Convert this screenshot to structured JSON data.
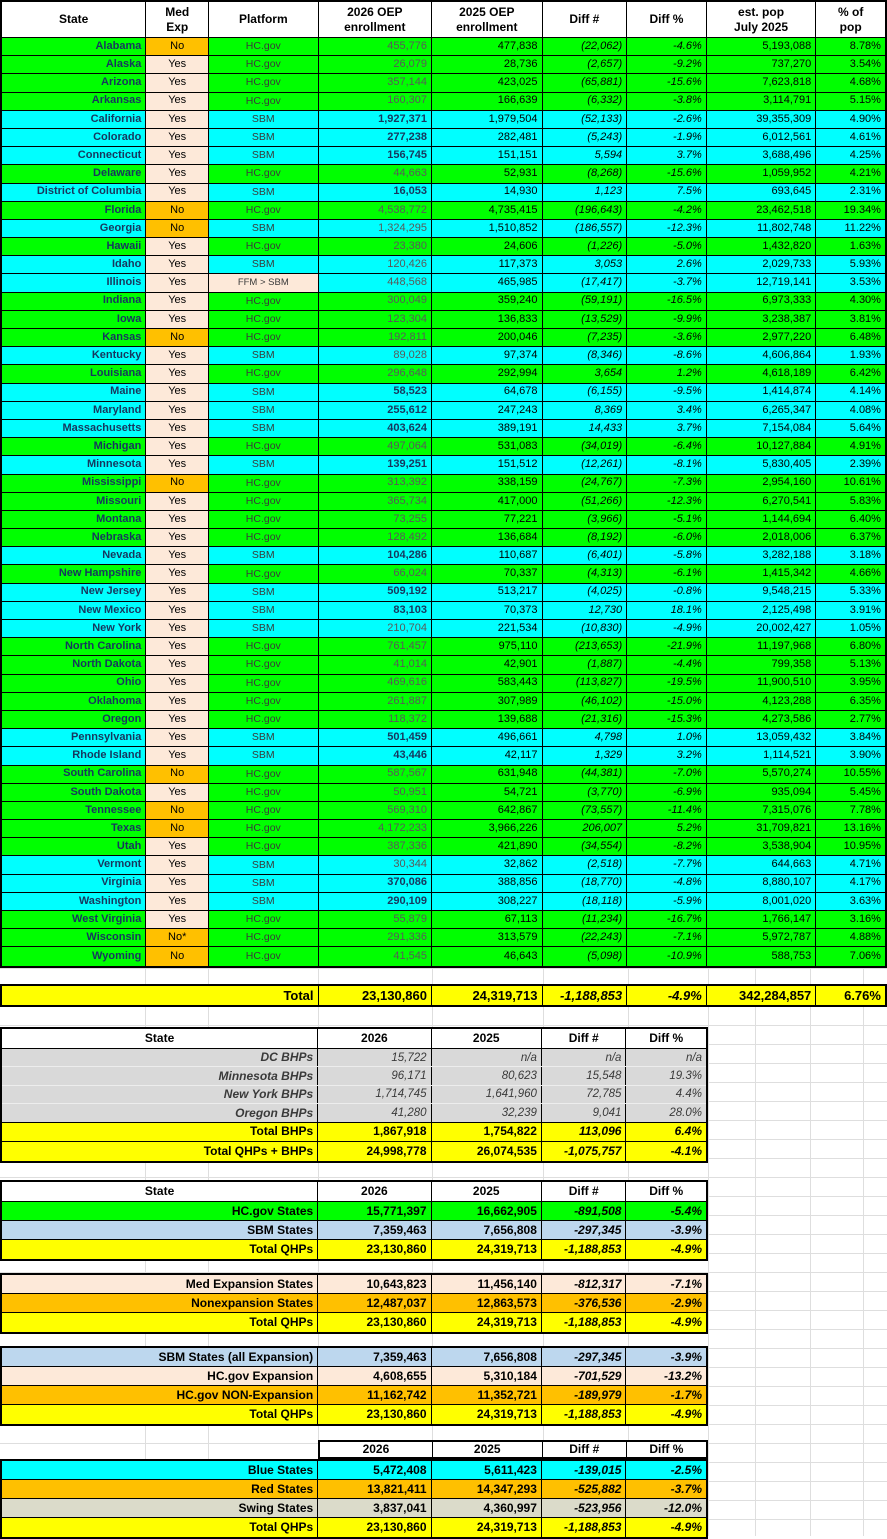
{
  "colors": {
    "hcgov_green": "#00FF00",
    "sbm_cyan": "#00FFFF",
    "total_yellow": "#FFFF00",
    "nonexpansion_orange": "#FFC000",
    "expansion_peach": "#FDE9D9",
    "bhp_gray": "#D9D9D9",
    "sbm_lightblue": "#BDD7EE",
    "swing_olive": "#DBDBCA",
    "state_text_navy": "#17375E"
  },
  "main_table": {
    "headers": {
      "state": "State",
      "med_exp": "Med\nExp",
      "platform": "Platform",
      "e2026": "2026 OEP\nenrollment",
      "e2025": "2025 OEP\nenrollment",
      "diff_n": "Diff #",
      "diff_pct": "Diff %",
      "pop": "est. pop\nJuly 2025",
      "pct_pop": "% of\npop"
    },
    "rows": [
      {
        "state": "Alabama",
        "med_exp": "No",
        "platform": "HC.gov",
        "e2026": "455,776",
        "e2025": "477,838",
        "diff_n": "(22,062)",
        "diff_pct": "-4.6%",
        "pop": "5,193,088",
        "pct_pop": "8.78%"
      },
      {
        "state": "Alaska",
        "med_exp": "Yes",
        "platform": "HC.gov",
        "e2026": "26,079",
        "e2025": "28,736",
        "diff_n": "(2,657)",
        "diff_pct": "-9.2%",
        "pop": "737,270",
        "pct_pop": "3.54%"
      },
      {
        "state": "Arizona",
        "med_exp": "Yes",
        "platform": "HC.gov",
        "e2026": "357,144",
        "e2025": "423,025",
        "diff_n": "(65,881)",
        "diff_pct": "-15.6%",
        "pop": "7,623,818",
        "pct_pop": "4.68%"
      },
      {
        "state": "Arkansas",
        "med_exp": "Yes",
        "platform": "HC.gov",
        "e2026": "160,307",
        "e2025": "166,639",
        "diff_n": "(6,332)",
        "diff_pct": "-3.8%",
        "pop": "3,114,791",
        "pct_pop": "5.15%"
      },
      {
        "state": "California",
        "med_exp": "Yes",
        "platform": "SBM",
        "e2026": "1,927,371",
        "e2025": "1,979,504",
        "diff_n": "(52,133)",
        "diff_pct": "-2.6%",
        "pop": "39,355,309",
        "pct_pop": "4.90%",
        "bold_2026": true
      },
      {
        "state": "Colorado",
        "med_exp": "Yes",
        "platform": "SBM",
        "e2026": "277,238",
        "e2025": "282,481",
        "diff_n": "(5,243)",
        "diff_pct": "-1.9%",
        "pop": "6,012,561",
        "pct_pop": "4.61%",
        "bold_2026": true
      },
      {
        "state": "Connecticut",
        "med_exp": "Yes",
        "platform": "SBM",
        "e2026": "156,745",
        "e2025": "151,151",
        "diff_n": "5,594",
        "diff_pct": "3.7%",
        "pop": "3,688,496",
        "pct_pop": "4.25%",
        "bold_2026": true
      },
      {
        "state": "Delaware",
        "med_exp": "Yes",
        "platform": "HC.gov",
        "e2026": "44,663",
        "e2025": "52,931",
        "diff_n": "(8,268)",
        "diff_pct": "-15.6%",
        "pop": "1,059,952",
        "pct_pop": "4.21%"
      },
      {
        "state": "District of Columbia",
        "med_exp": "Yes",
        "platform": "SBM",
        "e2026": "16,053",
        "e2025": "14,930",
        "diff_n": "1,123",
        "diff_pct": "7.5%",
        "pop": "693,645",
        "pct_pop": "2.31%",
        "bold_2026": true
      },
      {
        "state": "Florida",
        "med_exp": "No",
        "platform": "HC.gov",
        "e2026": "4,538,772",
        "e2025": "4,735,415",
        "diff_n": "(196,643)",
        "diff_pct": "-4.2%",
        "pop": "23,462,518",
        "pct_pop": "19.34%"
      },
      {
        "state": "Georgia",
        "med_exp": "No",
        "platform": "SBM",
        "e2026": "1,324,295",
        "e2025": "1,510,852",
        "diff_n": "(186,557)",
        "diff_pct": "-12.3%",
        "pop": "11,802,748",
        "pct_pop": "11.22%"
      },
      {
        "state": "Hawaii",
        "med_exp": "Yes",
        "platform": "HC.gov",
        "e2026": "23,380",
        "e2025": "24,606",
        "diff_n": "(1,226)",
        "diff_pct": "-5.0%",
        "pop": "1,432,820",
        "pct_pop": "1.63%"
      },
      {
        "state": "Idaho",
        "med_exp": "Yes",
        "platform": "SBM",
        "e2026": "120,426",
        "e2025": "117,373",
        "diff_n": "3,053",
        "diff_pct": "2.6%",
        "pop": "2,029,733",
        "pct_pop": "5.93%"
      },
      {
        "state": "Illinois",
        "med_exp": "Yes",
        "platform": "FFM > SBM",
        "e2026": "448,568",
        "e2025": "465,985",
        "diff_n": "(17,417)",
        "diff_pct": "-3.7%",
        "pop": "12,719,141",
        "pct_pop": "3.53%"
      },
      {
        "state": "Indiana",
        "med_exp": "Yes",
        "platform": "HC.gov",
        "e2026": "300,049",
        "e2025": "359,240",
        "diff_n": "(59,191)",
        "diff_pct": "-16.5%",
        "pop": "6,973,333",
        "pct_pop": "4.30%"
      },
      {
        "state": "Iowa",
        "med_exp": "Yes",
        "platform": "HC.gov",
        "e2026": "123,304",
        "e2025": "136,833",
        "diff_n": "(13,529)",
        "diff_pct": "-9.9%",
        "pop": "3,238,387",
        "pct_pop": "3.81%"
      },
      {
        "state": "Kansas",
        "med_exp": "No",
        "platform": "HC.gov",
        "e2026": "192,811",
        "e2025": "200,046",
        "diff_n": "(7,235)",
        "diff_pct": "-3.6%",
        "pop": "2,977,220",
        "pct_pop": "6.48%"
      },
      {
        "state": "Kentucky",
        "med_exp": "Yes",
        "platform": "SBM",
        "e2026": "89,028",
        "e2025": "97,374",
        "diff_n": "(8,346)",
        "diff_pct": "-8.6%",
        "pop": "4,606,864",
        "pct_pop": "1.93%"
      },
      {
        "state": "Louisiana",
        "med_exp": "Yes",
        "platform": "HC.gov",
        "e2026": "296,648",
        "e2025": "292,994",
        "diff_n": "3,654",
        "diff_pct": "1.2%",
        "pop": "4,618,189",
        "pct_pop": "6.42%"
      },
      {
        "state": "Maine",
        "med_exp": "Yes",
        "platform": "SBM",
        "e2026": "58,523",
        "e2025": "64,678",
        "diff_n": "(6,155)",
        "diff_pct": "-9.5%",
        "pop": "1,414,874",
        "pct_pop": "4.14%",
        "bold_2026": true
      },
      {
        "state": "Maryland",
        "med_exp": "Yes",
        "platform": "SBM",
        "e2026": "255,612",
        "e2025": "247,243",
        "diff_n": "8,369",
        "diff_pct": "3.4%",
        "pop": "6,265,347",
        "pct_pop": "4.08%",
        "bold_2026": true
      },
      {
        "state": "Massachusetts",
        "med_exp": "Yes",
        "platform": "SBM",
        "e2026": "403,624",
        "e2025": "389,191",
        "diff_n": "14,433",
        "diff_pct": "3.7%",
        "pop": "7,154,084",
        "pct_pop": "5.64%",
        "bold_2026": true
      },
      {
        "state": "Michigan",
        "med_exp": "Yes",
        "platform": "HC.gov",
        "e2026": "497,064",
        "e2025": "531,083",
        "diff_n": "(34,019)",
        "diff_pct": "-6.4%",
        "pop": "10,127,884",
        "pct_pop": "4.91%"
      },
      {
        "state": "Minnesota",
        "med_exp": "Yes",
        "platform": "SBM",
        "e2026": "139,251",
        "e2025": "151,512",
        "diff_n": "(12,261)",
        "diff_pct": "-8.1%",
        "pop": "5,830,405",
        "pct_pop": "2.39%",
        "bold_2026": true
      },
      {
        "state": "Mississippi",
        "med_exp": "No",
        "platform": "HC.gov",
        "e2026": "313,392",
        "e2025": "338,159",
        "diff_n": "(24,767)",
        "diff_pct": "-7.3%",
        "pop": "2,954,160",
        "pct_pop": "10.61%"
      },
      {
        "state": "Missouri",
        "med_exp": "Yes",
        "platform": "HC.gov",
        "e2026": "365,734",
        "e2025": "417,000",
        "diff_n": "(51,266)",
        "diff_pct": "-12.3%",
        "pop": "6,270,541",
        "pct_pop": "5.83%"
      },
      {
        "state": "Montana",
        "med_exp": "Yes",
        "platform": "HC.gov",
        "e2026": "73,255",
        "e2025": "77,221",
        "diff_n": "(3,966)",
        "diff_pct": "-5.1%",
        "pop": "1,144,694",
        "pct_pop": "6.40%"
      },
      {
        "state": "Nebraska",
        "med_exp": "Yes",
        "platform": "HC.gov",
        "e2026": "128,492",
        "e2025": "136,684",
        "diff_n": "(8,192)",
        "diff_pct": "-6.0%",
        "pop": "2,018,006",
        "pct_pop": "6.37%"
      },
      {
        "state": "Nevada",
        "med_exp": "Yes",
        "platform": "SBM",
        "e2026": "104,286",
        "e2025": "110,687",
        "diff_n": "(6,401)",
        "diff_pct": "-5.8%",
        "pop": "3,282,188",
        "pct_pop": "3.18%",
        "bold_2026": true
      },
      {
        "state": "New Hampshire",
        "med_exp": "Yes",
        "platform": "HC.gov",
        "e2026": "66,024",
        "e2025": "70,337",
        "diff_n": "(4,313)",
        "diff_pct": "-6.1%",
        "pop": "1,415,342",
        "pct_pop": "4.66%"
      },
      {
        "state": "New Jersey",
        "med_exp": "Yes",
        "platform": "SBM",
        "e2026": "509,192",
        "e2025": "513,217",
        "diff_n": "(4,025)",
        "diff_pct": "-0.8%",
        "pop": "9,548,215",
        "pct_pop": "5.33%",
        "bold_2026": true
      },
      {
        "state": "New Mexico",
        "med_exp": "Yes",
        "platform": "SBM",
        "e2026": "83,103",
        "e2025": "70,373",
        "diff_n": "12,730",
        "diff_pct": "18.1%",
        "pop": "2,125,498",
        "pct_pop": "3.91%",
        "bold_2026": true
      },
      {
        "state": "New York",
        "med_exp": "Yes",
        "platform": "SBM",
        "e2026": "210,704",
        "e2025": "221,534",
        "diff_n": "(10,830)",
        "diff_pct": "-4.9%",
        "pop": "20,002,427",
        "pct_pop": "1.05%"
      },
      {
        "state": "North Carolina",
        "med_exp": "Yes",
        "platform": "HC.gov",
        "e2026": "761,457",
        "e2025": "975,110",
        "diff_n": "(213,653)",
        "diff_pct": "-21.9%",
        "pop": "11,197,968",
        "pct_pop": "6.80%"
      },
      {
        "state": "North Dakota",
        "med_exp": "Yes",
        "platform": "HC.gov",
        "e2026": "41,014",
        "e2025": "42,901",
        "diff_n": "(1,887)",
        "diff_pct": "-4.4%",
        "pop": "799,358",
        "pct_pop": "5.13%"
      },
      {
        "state": "Ohio",
        "med_exp": "Yes",
        "platform": "HC.gov",
        "e2026": "469,616",
        "e2025": "583,443",
        "diff_n": "(113,827)",
        "diff_pct": "-19.5%",
        "pop": "11,900,510",
        "pct_pop": "3.95%"
      },
      {
        "state": "Oklahoma",
        "med_exp": "Yes",
        "platform": "HC.gov",
        "e2026": "261,887",
        "e2025": "307,989",
        "diff_n": "(46,102)",
        "diff_pct": "-15.0%",
        "pop": "4,123,288",
        "pct_pop": "6.35%"
      },
      {
        "state": "Oregon",
        "med_exp": "Yes",
        "platform": "HC.gov",
        "e2026": "118,372",
        "e2025": "139,688",
        "diff_n": "(21,316)",
        "diff_pct": "-15.3%",
        "pop": "4,273,586",
        "pct_pop": "2.77%"
      },
      {
        "state": "Pennsylvania",
        "med_exp": "Yes",
        "platform": "SBM",
        "e2026": "501,459",
        "e2025": "496,661",
        "diff_n": "4,798",
        "diff_pct": "1.0%",
        "pop": "13,059,432",
        "pct_pop": "3.84%",
        "bold_2026": true
      },
      {
        "state": "Rhode Island",
        "med_exp": "Yes",
        "platform": "SBM",
        "e2026": "43,446",
        "e2025": "42,117",
        "diff_n": "1,329",
        "diff_pct": "3.2%",
        "pop": "1,114,521",
        "pct_pop": "3.90%",
        "bold_2026": true
      },
      {
        "state": "South Carolina",
        "med_exp": "No",
        "platform": "HC.gov",
        "e2026": "587,567",
        "e2025": "631,948",
        "diff_n": "(44,381)",
        "diff_pct": "-7.0%",
        "pop": "5,570,274",
        "pct_pop": "10.55%"
      },
      {
        "state": "South Dakota",
        "med_exp": "Yes",
        "platform": "HC.gov",
        "e2026": "50,951",
        "e2025": "54,721",
        "diff_n": "(3,770)",
        "diff_pct": "-6.9%",
        "pop": "935,094",
        "pct_pop": "5.45%"
      },
      {
        "state": "Tennessee",
        "med_exp": "No",
        "platform": "HC.gov",
        "e2026": "569,310",
        "e2025": "642,867",
        "diff_n": "(73,557)",
        "diff_pct": "-11.4%",
        "pop": "7,315,076",
        "pct_pop": "7.78%"
      },
      {
        "state": "Texas",
        "med_exp": "No",
        "platform": "HC.gov",
        "e2026": "4,172,233",
        "e2025": "3,966,226",
        "diff_n": "206,007",
        "diff_pct": "5.2%",
        "pop": "31,709,821",
        "pct_pop": "13.16%"
      },
      {
        "state": "Utah",
        "med_exp": "Yes",
        "platform": "HC.gov",
        "e2026": "387,336",
        "e2025": "421,890",
        "diff_n": "(34,554)",
        "diff_pct": "-8.2%",
        "pop": "3,538,904",
        "pct_pop": "10.95%"
      },
      {
        "state": "Vermont",
        "med_exp": "Yes",
        "platform": "SBM",
        "e2026": "30,344",
        "e2025": "32,862",
        "diff_n": "(2,518)",
        "diff_pct": "-7.7%",
        "pop": "644,663",
        "pct_pop": "4.71%"
      },
      {
        "state": "Virginia",
        "med_exp": "Yes",
        "platform": "SBM",
        "e2026": "370,086",
        "e2025": "388,856",
        "diff_n": "(18,770)",
        "diff_pct": "-4.8%",
        "pop": "8,880,107",
        "pct_pop": "4.17%",
        "bold_2026": true
      },
      {
        "state": "Washington",
        "med_exp": "Yes",
        "platform": "SBM",
        "e2026": "290,109",
        "e2025": "308,227",
        "diff_n": "(18,118)",
        "diff_pct": "-5.9%",
        "pop": "8,001,020",
        "pct_pop": "3.63%",
        "bold_2026": true
      },
      {
        "state": "West Virginia",
        "med_exp": "Yes",
        "platform": "HC.gov",
        "e2026": "55,879",
        "e2025": "67,113",
        "diff_n": "(11,234)",
        "diff_pct": "-16.7%",
        "pop": "1,766,147",
        "pct_pop": "3.16%"
      },
      {
        "state": "Wisconsin",
        "med_exp": "No*",
        "platform": "HC.gov",
        "e2026": "291,336",
        "e2025": "313,579",
        "diff_n": "(22,243)",
        "diff_pct": "-7.1%",
        "pop": "5,972,787",
        "pct_pop": "4.88%"
      },
      {
        "state": "Wyoming",
        "med_exp": "No",
        "platform": "HC.gov",
        "e2026": "41,545",
        "e2025": "46,643",
        "diff_n": "(5,098)",
        "diff_pct": "-10.9%",
        "pop": "588,753",
        "pct_pop": "7.06%"
      }
    ]
  },
  "total_row": {
    "label": "Total",
    "e2026": "23,130,860",
    "e2025": "24,319,713",
    "diff_n": "-1,188,853",
    "diff_pct": "-4.9%",
    "pop": "342,284,857",
    "pct_pop": "6.76%"
  },
  "bhp_table": {
    "headers": [
      "State",
      "2026",
      "2025",
      "Diff #",
      "Diff %"
    ],
    "rows": [
      {
        "label": "DC BHPs",
        "v2026": "15,722",
        "v2025": "n/a",
        "diff": "n/a",
        "pct": "n/a",
        "color": "gray"
      },
      {
        "label": "Minnesota BHPs",
        "v2026": "96,171",
        "v2025": "80,623",
        "diff": "15,548",
        "pct": "19.3%",
        "color": "gray"
      },
      {
        "label": "New York BHPs",
        "v2026": "1,714,745",
        "v2025": "1,641,960",
        "diff": "72,785",
        "pct": "4.4%",
        "color": "gray"
      },
      {
        "label": "Oregon BHPs",
        "v2026": "41,280",
        "v2025": "32,239",
        "diff": "9,041",
        "pct": "28.0%",
        "color": "gray"
      },
      {
        "label": "Total BHPs",
        "v2026": "1,867,918",
        "v2025": "1,754,822",
        "diff": "113,096",
        "pct": "6.4%",
        "color": "yellow"
      },
      {
        "label": "Total QHPs + BHPs",
        "v2026": "24,998,778",
        "v2025": "26,074,535",
        "diff": "-1,075,757",
        "pct": "-4.1%",
        "color": "yellow"
      }
    ]
  },
  "platform_table": {
    "headers": [
      "State",
      "2026",
      "2025",
      "Diff #",
      "Diff %"
    ],
    "rows": [
      {
        "label": "HC.gov States",
        "v2026": "15,771,397",
        "v2025": "16,662,905",
        "diff": "-891,508",
        "pct": "-5.4%",
        "color": "green"
      },
      {
        "label": "SBM States",
        "v2026": "7,359,463",
        "v2025": "7,656,808",
        "diff": "-297,345",
        "pct": "-3.9%",
        "color": "lightblue"
      },
      {
        "label": "Total QHPs",
        "v2026": "23,130,860",
        "v2025": "24,319,713",
        "diff": "-1,188,853",
        "pct": "-4.9%",
        "color": "yellow"
      }
    ]
  },
  "expansion_table": {
    "rows": [
      {
        "label": "Med Expansion States",
        "v2026": "10,643,823",
        "v2025": "11,456,140",
        "diff": "-812,317",
        "pct": "-7.1%",
        "color": "peach"
      },
      {
        "label": "Nonexpansion States",
        "v2026": "12,487,037",
        "v2025": "12,863,573",
        "diff": "-376,536",
        "pct": "-2.9%",
        "color": "orange"
      },
      {
        "label": "Total QHPs",
        "v2026": "23,130,860",
        "v2025": "24,319,713",
        "diff": "-1,188,853",
        "pct": "-4.9%",
        "color": "yellow"
      }
    ]
  },
  "sbm_expansion_table": {
    "rows": [
      {
        "label": "SBM States (all Expansion)",
        "v2026": "7,359,463",
        "v2025": "7,656,808",
        "diff": "-297,345",
        "pct": "-3.9%",
        "color": "lightblue"
      },
      {
        "label": "HC.gov Expansion",
        "v2026": "4,608,655",
        "v2025": "5,310,184",
        "diff": "-701,529",
        "pct": "-13.2%",
        "color": "peach"
      },
      {
        "label": "HC.gov NON-Expansion",
        "v2026": "11,162,742",
        "v2025": "11,352,721",
        "diff": "-189,979",
        "pct": "-1.7%",
        "color": "orange"
      },
      {
        "label": "Total QHPs",
        "v2026": "23,130,860",
        "v2025": "24,319,713",
        "diff": "-1,188,853",
        "pct": "-4.9%",
        "color": "yellow"
      }
    ]
  },
  "political_table": {
    "headers": [
      "2026",
      "2025",
      "Diff #",
      "Diff %"
    ],
    "rows": [
      {
        "label": "Blue States",
        "v2026": "5,472,408",
        "v2025": "5,611,423",
        "diff": "-139,015",
        "pct": "-2.5%",
        "color": "cyan"
      },
      {
        "label": "Red States",
        "v2026": "13,821,411",
        "v2025": "14,347,293",
        "diff": "-525,882",
        "pct": "-3.7%",
        "color": "orange"
      },
      {
        "label": "Swing States",
        "v2026": "3,837,041",
        "v2025": "4,360,997",
        "diff": "-523,956",
        "pct": "-12.0%",
        "color": "swing"
      },
      {
        "label": "Total QHPs",
        "v2026": "23,130,860",
        "v2025": "24,319,713",
        "diff": "-1,188,853",
        "pct": "-4.9%",
        "color": "yellow"
      }
    ]
  }
}
